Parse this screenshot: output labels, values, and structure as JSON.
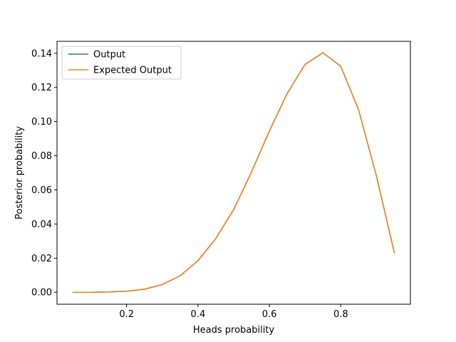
{
  "chart_data": {
    "type": "line",
    "title": "",
    "xlabel": "Heads probability",
    "ylabel": "Posterior probability",
    "xlim": [
      0.005,
      0.995
    ],
    "ylim": [
      -0.007,
      0.147
    ],
    "xticks": [
      0.2,
      0.4,
      0.6,
      0.8
    ],
    "xtick_labels": [
      "0.2",
      "0.4",
      "0.6",
      "0.8"
    ],
    "yticks": [
      0.0,
      0.02,
      0.04,
      0.06,
      0.08,
      0.1,
      0.12,
      0.14
    ],
    "ytick_labels": [
      "0.00",
      "0.02",
      "0.04",
      "0.06",
      "0.08",
      "0.10",
      "0.12",
      "0.14"
    ],
    "grid": false,
    "legend_position": "upper-left",
    "x": [
      0.05,
      0.1,
      0.15,
      0.2,
      0.25,
      0.3,
      0.35,
      0.4,
      0.45,
      0.5,
      0.55,
      0.6,
      0.65,
      0.7,
      0.75,
      0.8,
      0.85,
      0.9,
      0.95
    ],
    "series": [
      {
        "name": "Output",
        "color": "#1f77b4",
        "values": [
          0.0,
          0.0,
          0.0002,
          0.0006,
          0.0018,
          0.0045,
          0.0097,
          0.0185,
          0.0315,
          0.0485,
          0.0705,
          0.0945,
          0.1165,
          0.1335,
          0.1403,
          0.1324,
          0.1068,
          0.068,
          0.0232
        ]
      },
      {
        "name": "Expected Output",
        "color": "#ff7f0e",
        "values": [
          0.0,
          0.0,
          0.0002,
          0.0006,
          0.0018,
          0.0045,
          0.0097,
          0.0185,
          0.0315,
          0.0485,
          0.0705,
          0.0945,
          0.1165,
          0.1335,
          0.1403,
          0.1324,
          0.1068,
          0.068,
          0.0232
        ]
      }
    ]
  }
}
